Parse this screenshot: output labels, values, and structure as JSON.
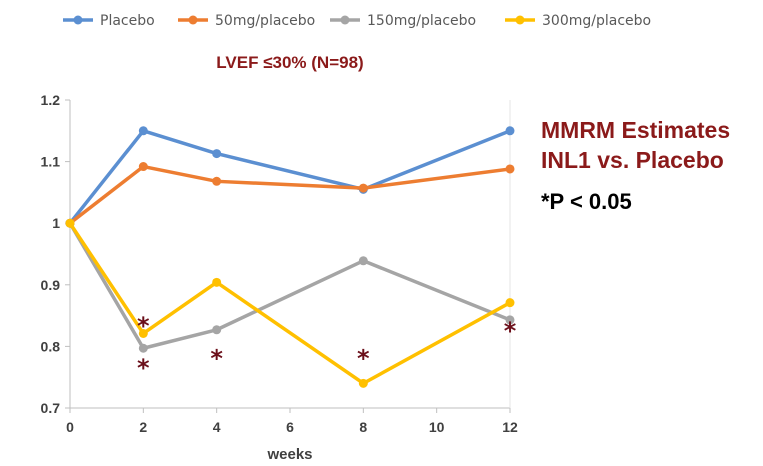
{
  "chart_data": {
    "type": "line",
    "title": "LVEF ≤30% (N=98)",
    "xlabel": "weeks",
    "ylabel": "",
    "x": [
      0,
      2,
      4,
      8,
      12
    ],
    "xlim": [
      0,
      12
    ],
    "ylim": [
      0.7,
      1.2
    ],
    "xticks": [
      "0",
      "2",
      "4",
      "6",
      "8",
      "10",
      "12"
    ],
    "yticks": [
      "0.7",
      "0.8",
      "0.9",
      "1",
      "1.1",
      "1.2"
    ],
    "legend_position": "top",
    "series": [
      {
        "name": "Placebo",
        "color": "#5b8fd1",
        "values": [
          1.0,
          1.15,
          1.113,
          1.055,
          1.15
        ]
      },
      {
        "name": "50mg/placebo",
        "color": "#ed7d31",
        "values": [
          1.0,
          1.092,
          1.068,
          1.057,
          1.088
        ]
      },
      {
        "name": "150mg/placebo",
        "color": "#a5a5a5",
        "values": [
          1.0,
          0.797,
          0.827,
          0.939,
          0.843
        ]
      },
      {
        "name": "300mg/placebo",
        "color": "#ffc000",
        "values": [
          1.0,
          0.821,
          0.904,
          0.74,
          0.871
        ]
      }
    ],
    "significance_markers": [
      {
        "label": "*",
        "x": 2,
        "y": 0.843
      },
      {
        "label": "*",
        "x": 2,
        "y": 0.775
      },
      {
        "label": "*",
        "x": 4,
        "y": 0.79
      },
      {
        "label": "*",
        "x": 8,
        "y": 0.79
      },
      {
        "label": "*",
        "x": 12,
        "y": 0.835
      }
    ],
    "annotations": {
      "side_title_line1": "MMRM Estimates",
      "side_title_line2": "INL1 vs. Placebo",
      "significance_note": "*P < 0.05"
    }
  }
}
